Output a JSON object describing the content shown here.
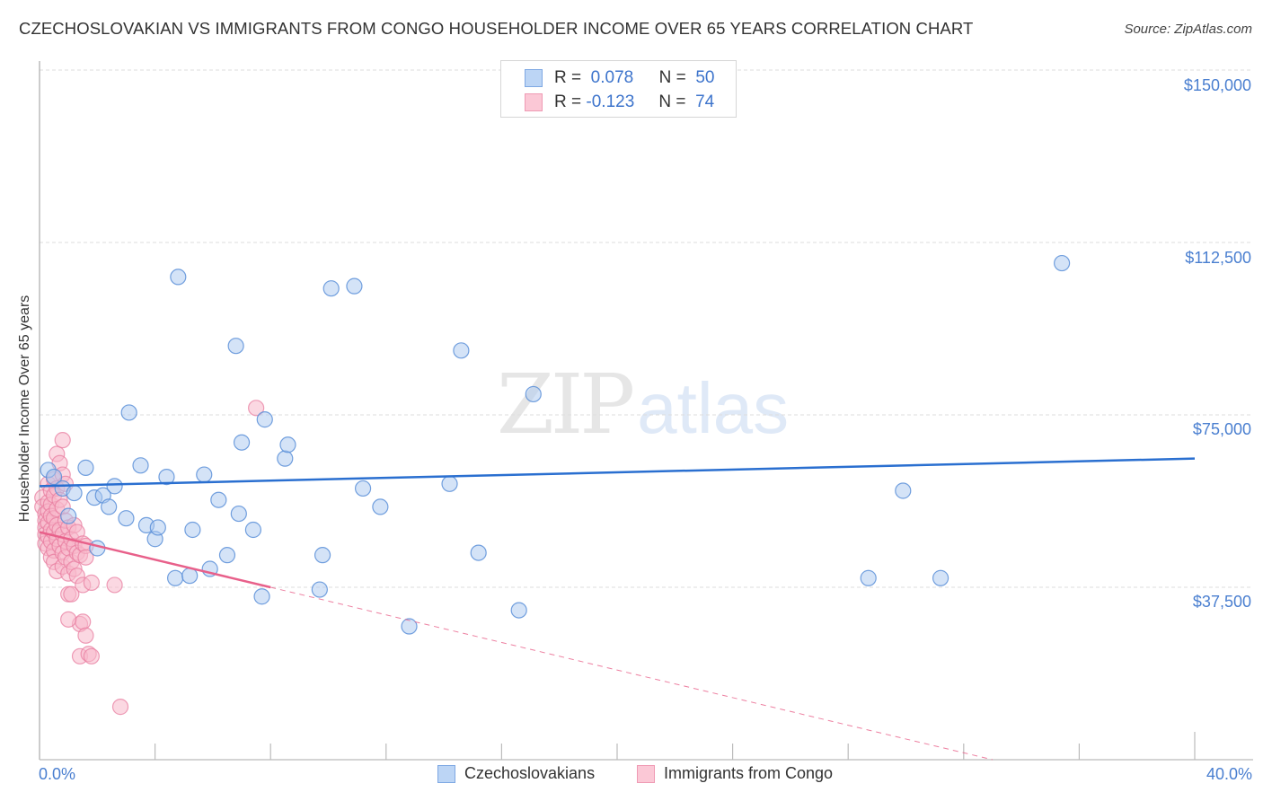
{
  "header": {
    "title": "CZECHOSLOVAKIAN VS IMMIGRANTS FROM CONGO HOUSEHOLDER INCOME OVER 65 YEARS CORRELATION CHART",
    "source": "Source: ZipAtlas.com"
  },
  "watermark": {
    "zip": "ZIP",
    "atlas": "atlas"
  },
  "legend": {
    "rows": [
      {
        "r_label": "R =",
        "r_value": "0.078",
        "n_label": "N =",
        "n_value": "50",
        "color": "#a9c8f0"
      },
      {
        "r_label": "R =",
        "r_value": "-0.123",
        "n_label": "N =",
        "n_value": "74",
        "color": "#f7b8cb"
      }
    ]
  },
  "bottom_legend": {
    "series_1": "Czechoslovakians",
    "series_2": "Immigrants from Congo"
  },
  "axes": {
    "y_label": "Householder Income Over 65 years",
    "y_ticks": [
      "$150,000",
      "$112,500",
      "$75,000",
      "$37,500"
    ],
    "x_min_label": "0.0%",
    "x_max_label": "40.0%"
  },
  "colors": {
    "blue_fill": "#a9c8f0",
    "blue_stroke": "#5b8fd8",
    "blue_line": "#2a6fd0",
    "pink_fill": "#f7b8cb",
    "pink_stroke": "#e87ea0",
    "pink_line": "#e8608a",
    "tick_text": "#4a7fd0",
    "grid": "#dddddd"
  },
  "chart_data": {
    "type": "scatter",
    "title": "CZECHOSLOVAKIAN VS IMMIGRANTS FROM CONGO HOUSEHOLDER INCOME OVER 65 YEARS CORRELATION CHART",
    "xlabel": "",
    "ylabel": "Householder Income Over 65 years",
    "xlim": [
      0,
      40
    ],
    "ylim": [
      0,
      150000
    ],
    "x_unit": "%",
    "y_ticks": [
      37500,
      75000,
      112500,
      150000
    ],
    "grid": true,
    "legend_position": "top-center",
    "series": [
      {
        "name": "Czechoslovakians",
        "R": 0.078,
        "N": 50,
        "color": "#a9c8f0",
        "trend": {
          "x": [
            0,
            40
          ],
          "y": [
            59500,
            65500
          ]
        },
        "points": [
          [
            0.3,
            63000
          ],
          [
            0.5,
            61500
          ],
          [
            0.8,
            59000
          ],
          [
            1.2,
            58000
          ],
          [
            1.6,
            63500
          ],
          [
            1.9,
            57000
          ],
          [
            2.2,
            57500
          ],
          [
            2.4,
            55000
          ],
          [
            2.6,
            59500
          ],
          [
            3.0,
            52500
          ],
          [
            3.1,
            75500
          ],
          [
            3.5,
            64000
          ],
          [
            3.7,
            51000
          ],
          [
            4.0,
            48000
          ],
          [
            4.1,
            50500
          ],
          [
            4.4,
            61500
          ],
          [
            4.7,
            39500
          ],
          [
            4.8,
            105000
          ],
          [
            5.2,
            40000
          ],
          [
            5.3,
            50000
          ],
          [
            5.7,
            62000
          ],
          [
            5.9,
            41500
          ],
          [
            6.2,
            56500
          ],
          [
            6.5,
            44500
          ],
          [
            6.8,
            90000
          ],
          [
            6.9,
            53500
          ],
          [
            7.0,
            69000
          ],
          [
            7.4,
            50000
          ],
          [
            7.7,
            35500
          ],
          [
            7.8,
            74000
          ],
          [
            8.5,
            65500
          ],
          [
            8.6,
            68500
          ],
          [
            9.7,
            37000
          ],
          [
            9.8,
            44500
          ],
          [
            10.1,
            102500
          ],
          [
            10.9,
            103000
          ],
          [
            11.2,
            59000
          ],
          [
            11.8,
            55000
          ],
          [
            12.8,
            29000
          ],
          [
            14.2,
            60000
          ],
          [
            14.6,
            89000
          ],
          [
            15.2,
            45000
          ],
          [
            16.6,
            32500
          ],
          [
            17.1,
            79500
          ],
          [
            28.7,
            39500
          ],
          [
            29.9,
            58500
          ],
          [
            31.2,
            39500
          ],
          [
            35.4,
            108000
          ],
          [
            1.0,
            53000
          ],
          [
            2.0,
            46000
          ]
        ]
      },
      {
        "name": "Immigrants from Congo",
        "R": -0.123,
        "N": 74,
        "color": "#f7b8cb",
        "trend": {
          "x": [
            0,
            8.0
          ],
          "y": [
            49500,
            37500
          ]
        },
        "trend_dashed_extension": {
          "x": [
            8.0,
            33.0
          ],
          "y": [
            37500,
            0
          ]
        },
        "points": [
          [
            0.1,
            57000
          ],
          [
            0.1,
            55000
          ],
          [
            0.2,
            53500
          ],
          [
            0.2,
            52000
          ],
          [
            0.2,
            50500
          ],
          [
            0.2,
            49000
          ],
          [
            0.2,
            47000
          ],
          [
            0.3,
            60000
          ],
          [
            0.3,
            56000
          ],
          [
            0.3,
            54000
          ],
          [
            0.3,
            51500
          ],
          [
            0.3,
            48500
          ],
          [
            0.3,
            46000
          ],
          [
            0.4,
            58500
          ],
          [
            0.4,
            55500
          ],
          [
            0.4,
            53000
          ],
          [
            0.4,
            50000
          ],
          [
            0.4,
            47500
          ],
          [
            0.4,
            44000
          ],
          [
            0.5,
            61000
          ],
          [
            0.5,
            57500
          ],
          [
            0.5,
            52500
          ],
          [
            0.5,
            49500
          ],
          [
            0.5,
            45500
          ],
          [
            0.5,
            43000
          ],
          [
            0.6,
            66500
          ],
          [
            0.6,
            59000
          ],
          [
            0.6,
            54500
          ],
          [
            0.6,
            51000
          ],
          [
            0.6,
            48000
          ],
          [
            0.6,
            41000
          ],
          [
            0.7,
            64500
          ],
          [
            0.7,
            56500
          ],
          [
            0.7,
            50000
          ],
          [
            0.7,
            46500
          ],
          [
            0.8,
            69500
          ],
          [
            0.8,
            62000
          ],
          [
            0.8,
            55000
          ],
          [
            0.8,
            49000
          ],
          [
            0.8,
            45000
          ],
          [
            0.8,
            42000
          ],
          [
            0.9,
            60000
          ],
          [
            0.9,
            52000
          ],
          [
            0.9,
            47500
          ],
          [
            0.9,
            44000
          ],
          [
            1.0,
            50500
          ],
          [
            1.0,
            46000
          ],
          [
            1.0,
            40500
          ],
          [
            1.0,
            36000
          ],
          [
            1.1,
            48000
          ],
          [
            1.1,
            43000
          ],
          [
            1.1,
            36000
          ],
          [
            1.2,
            51000
          ],
          [
            1.2,
            46500
          ],
          [
            1.2,
            41500
          ],
          [
            1.3,
            49500
          ],
          [
            1.3,
            45000
          ],
          [
            1.3,
            40000
          ],
          [
            1.4,
            44500
          ],
          [
            1.4,
            29500
          ],
          [
            1.4,
            22500
          ],
          [
            1.5,
            47000
          ],
          [
            1.5,
            38000
          ],
          [
            1.5,
            30000
          ],
          [
            1.6,
            46500
          ],
          [
            1.6,
            44000
          ],
          [
            1.6,
            27000
          ],
          [
            1.7,
            23000
          ],
          [
            1.8,
            22500
          ],
          [
            1.8,
            38500
          ],
          [
            1.0,
            30500
          ],
          [
            2.6,
            38000
          ],
          [
            2.8,
            11500
          ],
          [
            7.5,
            76500
          ]
        ]
      }
    ]
  }
}
